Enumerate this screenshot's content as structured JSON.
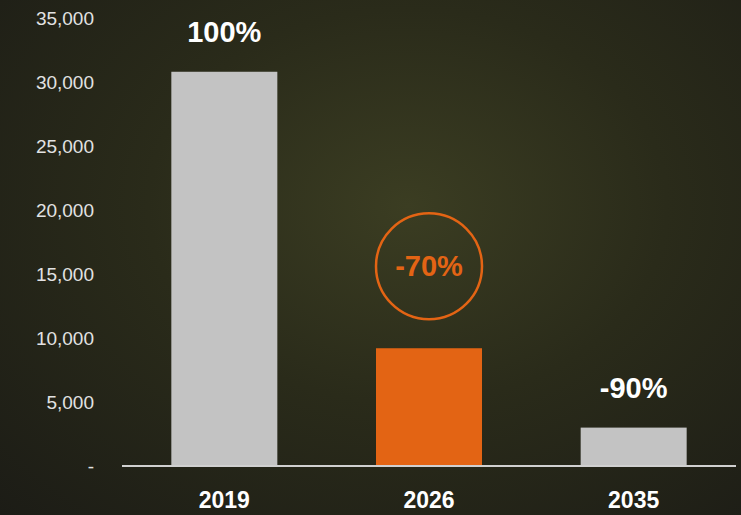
{
  "chart_data": {
    "type": "bar",
    "categories": [
      "2019",
      "2026",
      "2035"
    ],
    "values": [
      30800,
      9200,
      3000
    ],
    "colors": [
      "#c3c3c3",
      "#e36414",
      "#c3c3c3"
    ],
    "annotations": [
      "100%",
      "-70%",
      "-90%"
    ],
    "ylim": [
      0,
      35000
    ],
    "yticks": [
      {
        "value": 0,
        "label": "-"
      },
      {
        "value": 5000,
        "label": "5,000"
      },
      {
        "value": 10000,
        "label": "10,000"
      },
      {
        "value": 15000,
        "label": "15,000"
      },
      {
        "value": 20000,
        "label": "20,000"
      },
      {
        "value": 25000,
        "label": "25,000"
      },
      {
        "value": 30000,
        "label": "30,000"
      },
      {
        "value": 35000,
        "label": "35,000"
      }
    ],
    "grid": false
  }
}
